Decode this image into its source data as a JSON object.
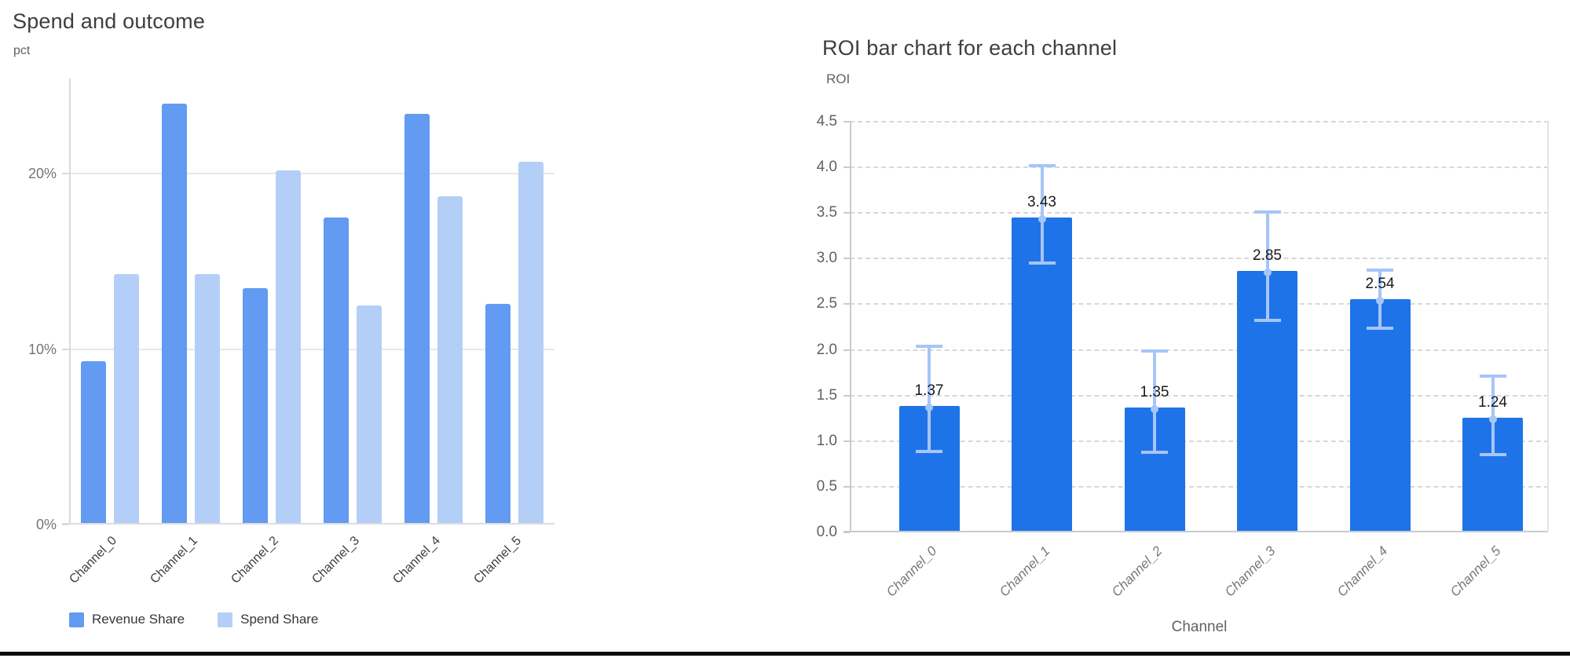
{
  "page": {
    "background": "#FFFFFF",
    "divider_color": "#0A0A0A"
  },
  "chart_data": [
    {
      "type": "bar",
      "title": "Spend and outcome",
      "unit_label": "pct",
      "categories": [
        "Channel_0",
        "Channel_1",
        "Channel_2",
        "Channel_3",
        "Channel_4",
        "Channel_5"
      ],
      "series": [
        {
          "name": "Revenue Share",
          "color": "#639AF2",
          "values": [
            9.2,
            23.9,
            13.4,
            17.4,
            23.3,
            12.5
          ]
        },
        {
          "name": "Spend Share",
          "color": "#B4CFF7",
          "values": [
            14.2,
            14.2,
            20.1,
            12.4,
            18.6,
            20.6
          ]
        }
      ],
      "y_ticks": [
        {
          "value": 0,
          "label": "0%"
        },
        {
          "value": 10,
          "label": "10%"
        },
        {
          "value": 20,
          "label": "20%"
        }
      ],
      "ylim": [
        0,
        25.4
      ],
      "grid": "horizontal-solid",
      "legend_position": "bottom"
    },
    {
      "type": "bar",
      "title": "ROI bar chart for each channel",
      "ylabel": "ROI",
      "xlabel": "Channel",
      "categories": [
        "Channel_0",
        "Channel_1",
        "Channel_2",
        "Channel_3",
        "Channel_4",
        "Channel_5"
      ],
      "values": [
        1.37,
        3.43,
        1.35,
        2.85,
        2.54,
        1.24
      ],
      "bar_labels": [
        "1.37",
        "3.43",
        "1.35",
        "2.85",
        "2.54",
        "1.24"
      ],
      "error_low": [
        0.89,
        2.95,
        0.88,
        2.32,
        2.24,
        0.85
      ],
      "error_high": [
        2.04,
        4.02,
        1.99,
        3.51,
        2.87,
        1.71
      ],
      "y_ticks": [
        {
          "value": 4.5,
          "label": "4.5"
        },
        {
          "value": 4.0,
          "label": "4.0"
        },
        {
          "value": 3.5,
          "label": "3.5"
        },
        {
          "value": 3.0,
          "label": "3.0"
        },
        {
          "value": 2.5,
          "label": "2.5"
        },
        {
          "value": 2.0,
          "label": "2.0"
        },
        {
          "value": 1.5,
          "label": "1.5"
        },
        {
          "value": 1.0,
          "label": "1.0"
        },
        {
          "value": 0.5,
          "label": "0.5"
        },
        {
          "value": 0.0,
          "label": "0.0"
        }
      ],
      "ylim": [
        0,
        4.5
      ],
      "bar_color": "#1F73E8",
      "error_color": "#A6C5F8",
      "grid": "horizontal-dashed",
      "legend_position": "none"
    }
  ]
}
